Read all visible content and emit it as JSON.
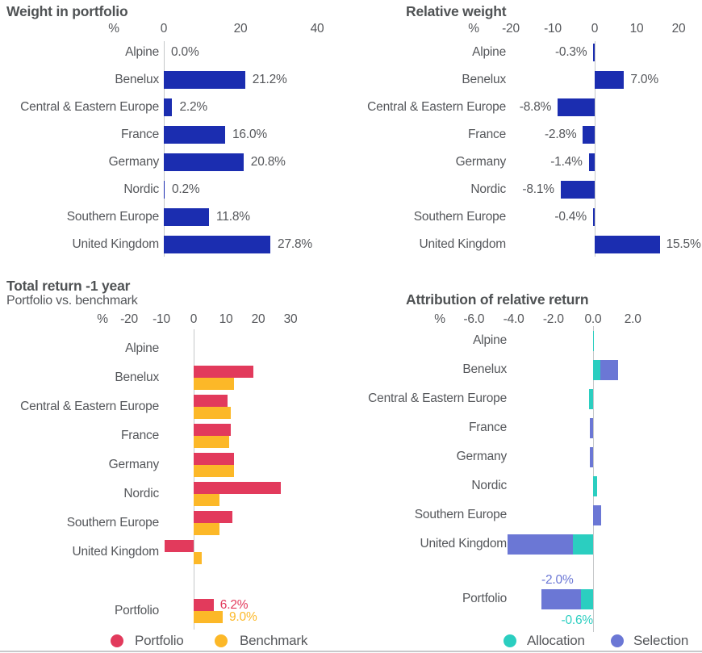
{
  "colors": {
    "bar_blue": "#1B2DB0",
    "portfolio_red": "#E23A5C",
    "benchmark_yellow": "#FCB828",
    "allocation_teal": "#2BCEC0",
    "selection_purple": "#6B77D5",
    "text_gray": "#55575B"
  },
  "chart_data": [
    {
      "id": "weight-in-portfolio",
      "type": "bar",
      "mode": "single",
      "title": "Weight in portfolio",
      "axis": {
        "unit": "%",
        "tick_values": [
          0,
          20,
          40
        ],
        "tick_labels": [
          "0",
          "20",
          "40"
        ],
        "range": [
          0,
          42
        ]
      },
      "categories": [
        "Alpine",
        "Benelux",
        "Central & Eastern Europe",
        "France",
        "Germany",
        "Nordic",
        "Southern Europe",
        "United Kingdom"
      ],
      "values": [
        0.0,
        21.2,
        2.2,
        16.0,
        20.8,
        0.2,
        11.8,
        27.8
      ],
      "value_labels": [
        "0.0%",
        "21.2%",
        "2.2%",
        "16.0%",
        "20.8%",
        "0.2%",
        "11.8%",
        "27.8%"
      ],
      "bar_color": "#1B2DB0"
    },
    {
      "id": "relative-weight",
      "type": "bar",
      "mode": "single",
      "title": "Relative weight",
      "axis": {
        "unit": "%",
        "tick_values": [
          -20,
          -10,
          0,
          10,
          20
        ],
        "tick_labels": [
          "-20",
          "-10",
          "0",
          "10",
          "20"
        ],
        "range": [
          -22,
          22
        ]
      },
      "categories": [
        "Alpine",
        "Benelux",
        "Central & Eastern Europe",
        "France",
        "Germany",
        "Nordic",
        "Southern Europe",
        "United Kingdom"
      ],
      "values": [
        -0.3,
        7.0,
        -8.8,
        -2.8,
        -1.4,
        -8.1,
        -0.4,
        15.5
      ],
      "value_labels": [
        "-0.3%",
        "7.0%",
        "-8.8%",
        "-2.8%",
        "-1.4%",
        "-8.1%",
        "-0.4%",
        "15.5%"
      ],
      "bar_color": "#1B2DB0"
    },
    {
      "id": "total-return-1-year",
      "type": "bar",
      "mode": "grouped",
      "title": "Total return -1 year",
      "subtitle": "Portfolio vs. benchmark",
      "axis": {
        "unit": "%",
        "tick_values": [
          -20,
          -10,
          0,
          10,
          20,
          30
        ],
        "tick_labels": [
          "-20",
          "-10",
          "0",
          "10",
          "20",
          "30"
        ],
        "range": [
          -25,
          32
        ]
      },
      "categories": [
        "Alpine",
        "Benelux",
        "Central & Eastern Europe",
        "France",
        "Germany",
        "Nordic",
        "Southern Europe",
        "United Kingdom"
      ],
      "series": [
        {
          "name": "Portfolio",
          "color": "#E23A5C",
          "values": [
            0,
            18.5,
            10.5,
            11.5,
            12.5,
            27.0,
            12.0,
            -9.0
          ]
        },
        {
          "name": "Benchmark",
          "color": "#FCB828",
          "values": [
            0,
            12.5,
            11.5,
            11.0,
            12.5,
            8.0,
            8.0,
            2.5
          ]
        }
      ],
      "summary": {
        "label": "Portfolio",
        "values": [
          6.2,
          9.0
        ],
        "value_labels": [
          "6.2%",
          "9.0%"
        ]
      },
      "legend": [
        {
          "label": "Portfolio",
          "color": "#E23A5C"
        },
        {
          "label": "Benchmark",
          "color": "#FCB828"
        }
      ]
    },
    {
      "id": "attribution-of-relative-return",
      "type": "bar",
      "mode": "stacked",
      "title": "Attribution of relative return",
      "axis": {
        "unit": "%",
        "tick_values": [
          -6,
          -4,
          -2,
          0,
          2
        ],
        "tick_labels": [
          "-6.0",
          "-4.0",
          "-2.0",
          "0.0",
          "2.0"
        ],
        "range": [
          -6.5,
          2.5
        ]
      },
      "categories": [
        "Alpine",
        "Benelux",
        "Central & Eastern Europe",
        "France",
        "Germany",
        "Nordic",
        "Southern Europe",
        "United Kingdom"
      ],
      "series": [
        {
          "name": "Allocation",
          "color": "#2BCEC0",
          "values": [
            0.05,
            0.35,
            -0.2,
            0,
            0,
            0.2,
            0,
            -1.0
          ]
        },
        {
          "name": "Selection",
          "color": "#6B77D5",
          "values": [
            0,
            0.9,
            0,
            -0.15,
            -0.15,
            0,
            0.4,
            -3.3
          ]
        }
      ],
      "summary": {
        "label": "Portfolio",
        "values": [
          -0.6,
          -2.0
        ],
        "value_labels": [
          "-0.6%",
          "-2.0%"
        ]
      },
      "legend": [
        {
          "label": "Allocation",
          "color": "#2BCEC0"
        },
        {
          "label": "Selection",
          "color": "#6B77D5"
        }
      ]
    }
  ]
}
